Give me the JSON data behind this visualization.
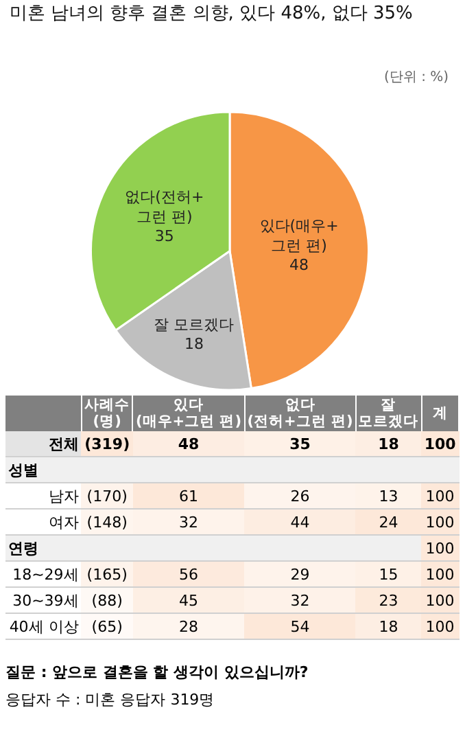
{
  "chart_data": [
    {
      "type": "pie",
      "title": "미혼 남녀의 향후 결혼 의향, 있다 48%, 없다 35%",
      "annotations": [
        "(단위 : %)"
      ],
      "categories": [
        "있다(매우+\n그런 편)",
        "잘 모르겠다",
        "없다(전허+\n그런 편)"
      ],
      "values": [
        48,
        18,
        35
      ],
      "colors": [
        "#f79646",
        "#bfbfbf",
        "#92d050"
      ],
      "data_labels": true,
      "legend": false
    },
    {
      "type": "heatmap",
      "categories": [
        "사례수\n(명)",
        "있다\n(매우+그런 편)",
        "없다\n(전허+그런 편)",
        "잘\n모르겠다",
        "계"
      ],
      "y_categories": [
        "전체",
        "성별",
        "남자",
        "여자",
        "연령",
        "18~29세",
        "30~39세",
        "40세 이상"
      ],
      "cells": [
        [
          319,
          48,
          35,
          18,
          100
        ],
        [
          null,
          null,
          null,
          null,
          null
        ],
        [
          170,
          61,
          26,
          13,
          100
        ],
        [
          148,
          32,
          44,
          24,
          100
        ],
        [
          null,
          null,
          null,
          null,
          100
        ],
        [
          165,
          56,
          29,
          15,
          100
        ],
        [
          88,
          45,
          32,
          23,
          100
        ],
        [
          65,
          28,
          54,
          18,
          100
        ]
      ],
      "cell_labels": [
        [
          "(319)",
          "48",
          "35",
          "18",
          "100"
        ],
        [
          null,
          null,
          null,
          null,
          null
        ],
        [
          "(170)",
          "61",
          "26",
          "13",
          "100"
        ],
        [
          "(148)",
          "32",
          "44",
          "24",
          "100"
        ],
        [
          null,
          null,
          null,
          null,
          "100"
        ],
        [
          "(165)",
          "56",
          "29",
          "15",
          "100"
        ],
        [
          "(88)",
          "45",
          "32",
          "23",
          "100"
        ],
        [
          "(65)",
          "28",
          "54",
          "18",
          "100"
        ]
      ],
      "annotations": [
        "질문 :  앞으로 결혼을 할 생각이 있으십니까?",
        "응답자 수 : 미혼 응답자 319명"
      ]
    }
  ]
}
